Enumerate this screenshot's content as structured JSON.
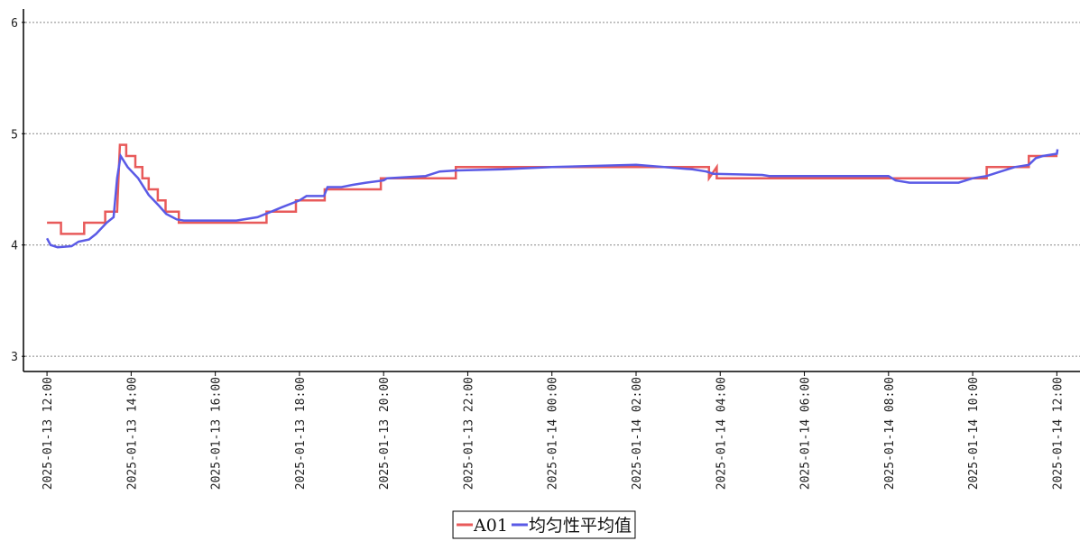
{
  "chart_data": {
    "type": "line",
    "xlim": [
      "2025-01-13 11:29",
      "2025-01-14 12:33"
    ],
    "xticks": [
      "2025-01-13 12:00",
      "2025-01-13 14:00",
      "2025-01-13 16:00",
      "2025-01-13 18:00",
      "2025-01-13 20:00",
      "2025-01-13 22:00",
      "2025-01-14 00:00",
      "2025-01-14 02:00",
      "2025-01-14 04:00",
      "2025-01-14 06:00",
      "2025-01-14 08:00",
      "2025-01-14 10:00",
      "2025-01-14 12:00"
    ],
    "ylim": [
      2.88,
      6.12
    ],
    "yticks": [
      3,
      4,
      5,
      6
    ],
    "grid": true,
    "legend": "bottom",
    "series": [
      {
        "name": "A01",
        "color": "#e85a5a",
        "x": [
          "2025-01-13 12:00",
          "2025-01-13 12:20",
          "2025-01-13 12:20",
          "2025-01-13 12:53",
          "2025-01-13 12:53",
          "2025-01-13 13:23",
          "2025-01-13 13:23",
          "2025-01-13 13:40",
          "2025-01-13 13:44",
          "2025-01-13 13:53",
          "2025-01-13 13:53",
          "2025-01-13 14:06",
          "2025-01-13 14:06",
          "2025-01-13 14:16",
          "2025-01-13 14:16",
          "2025-01-13 14:25",
          "2025-01-13 14:25",
          "2025-01-13 14:38",
          "2025-01-13 14:38",
          "2025-01-13 14:49",
          "2025-01-13 14:49",
          "2025-01-13 15:08",
          "2025-01-13 15:08",
          "2025-01-13 17:13",
          "2025-01-13 17:13",
          "2025-01-13 17:55",
          "2025-01-13 17:55",
          "2025-01-13 18:36",
          "2025-01-13 18:36",
          "2025-01-13 19:56",
          "2025-01-13 19:56",
          "2025-01-13 21:43",
          "2025-01-13 21:43",
          "2025-01-14 03:44",
          "2025-01-14 03:44",
          "2025-01-14 03:55",
          "2025-01-14 03:55",
          "2025-01-14 10:20",
          "2025-01-14 10:20",
          "2025-01-14 11:20",
          "2025-01-14 11:20",
          "2025-01-14 12:01"
        ],
        "values": [
          4.2,
          4.2,
          4.1,
          4.1,
          4.2,
          4.2,
          4.3,
          4.3,
          4.9,
          4.9,
          4.8,
          4.8,
          4.7,
          4.7,
          4.6,
          4.6,
          4.5,
          4.5,
          4.4,
          4.4,
          4.3,
          4.3,
          4.2,
          4.2,
          4.3,
          4.3,
          4.4,
          4.4,
          4.5,
          4.5,
          4.6,
          4.6,
          4.7,
          4.7,
          4.6,
          4.7,
          4.6,
          4.6,
          4.7,
          4.7,
          4.8,
          4.8
        ]
      },
      {
        "name": "均匀性平均值",
        "color": "#5a5ae6",
        "x": [
          "2025-01-13 12:00",
          "2025-01-13 12:05",
          "2025-01-13 12:15",
          "2025-01-13 12:35",
          "2025-01-13 12:45",
          "2025-01-13 13:00",
          "2025-01-13 13:10",
          "2025-01-13 13:25",
          "2025-01-13 13:35",
          "2025-01-13 13:40",
          "2025-01-13 13:45",
          "2025-01-13 13:55",
          "2025-01-13 14:10",
          "2025-01-13 14:25",
          "2025-01-13 14:40",
          "2025-01-13 14:50",
          "2025-01-13 15:05",
          "2025-01-13 15:15",
          "2025-01-13 16:30",
          "2025-01-13 17:00",
          "2025-01-13 17:20",
          "2025-01-13 17:35",
          "2025-01-13 18:00",
          "2025-01-13 18:10",
          "2025-01-13 18:35",
          "2025-01-13 18:40",
          "2025-01-13 19:00",
          "2025-01-13 19:15",
          "2025-01-13 19:35",
          "2025-01-13 20:00",
          "2025-01-13 20:05",
          "2025-01-13 21:00",
          "2025-01-13 21:20",
          "2025-01-13 21:45",
          "2025-01-13 22:50",
          "2025-01-14 00:00",
          "2025-01-14 02:00",
          "2025-01-14 02:40",
          "2025-01-14 03:20",
          "2025-01-14 03:40",
          "2025-01-14 03:50",
          "2025-01-14 05:00",
          "2025-01-14 05:10",
          "2025-01-14 08:00",
          "2025-01-14 08:10",
          "2025-01-14 08:30",
          "2025-01-14 09:40",
          "2025-01-14 10:00",
          "2025-01-14 10:20",
          "2025-01-14 10:40",
          "2025-01-14 11:00",
          "2025-01-14 11:20",
          "2025-01-14 11:30",
          "2025-01-14 11:40",
          "2025-01-14 12:00",
          "2025-01-14 12:01"
        ],
        "values": [
          4.06,
          4.0,
          3.98,
          3.99,
          4.03,
          4.05,
          4.1,
          4.2,
          4.25,
          4.6,
          4.8,
          4.7,
          4.6,
          4.45,
          4.35,
          4.28,
          4.23,
          4.22,
          4.22,
          4.25,
          4.3,
          4.34,
          4.4,
          4.44,
          4.44,
          4.52,
          4.52,
          4.54,
          4.56,
          4.58,
          4.6,
          4.62,
          4.66,
          4.67,
          4.68,
          4.7,
          4.72,
          4.7,
          4.68,
          4.66,
          4.64,
          4.63,
          4.62,
          4.62,
          4.58,
          4.56,
          4.56,
          4.6,
          4.62,
          4.66,
          4.7,
          4.72,
          4.78,
          4.8,
          4.82,
          4.86
        ]
      }
    ]
  }
}
